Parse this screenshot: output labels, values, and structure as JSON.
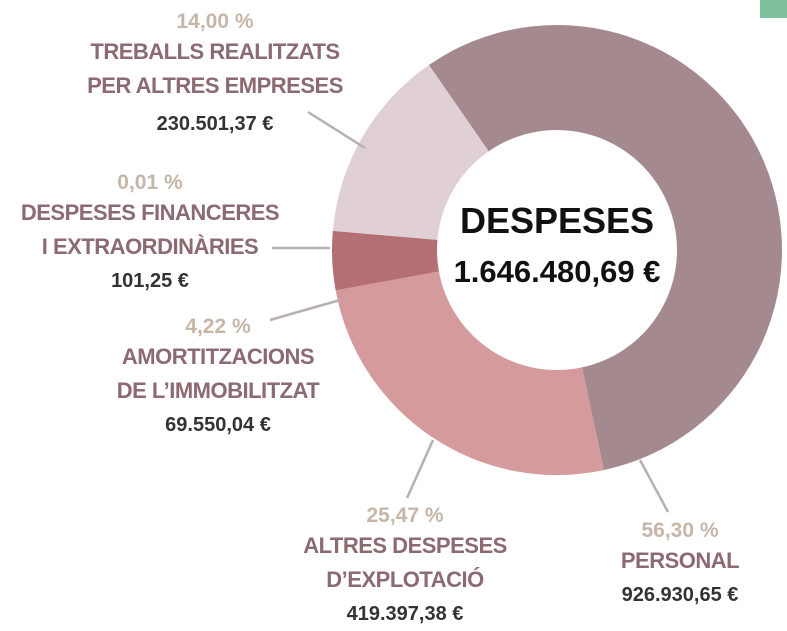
{
  "chart_data": {
    "type": "donut",
    "center_title": "DESPESES",
    "total_label": "1.646.480,69 €",
    "categories": [
      "PERSONAL",
      "ALTRES DESPESES\nD’EXPLOTACIÓ",
      "AMORTITZACIONS\nDE L’IMMOBILITZAT",
      "DESPESES FINANCERES\nI EXTRAORDINÀRIES",
      "TREBALLS REALITZATS\nPER ALTRES EMPRESES"
    ],
    "values": [
      56.3,
      25.47,
      4.22,
      0.01,
      14.0
    ],
    "value_labels": [
      "56,30 %",
      "25,47 %",
      "4,22 %",
      "0,01 %",
      "14,00 %"
    ],
    "amount_labels": [
      "926.930,65 €",
      "419.397,38 €",
      "69.550,04 €",
      "101,25 €",
      "230.501,37 €"
    ],
    "colors": [
      "#a48a8f",
      "#d59b9c",
      "#b46f74",
      "#c9a9ad",
      "#e0d0d5"
    ]
  }
}
